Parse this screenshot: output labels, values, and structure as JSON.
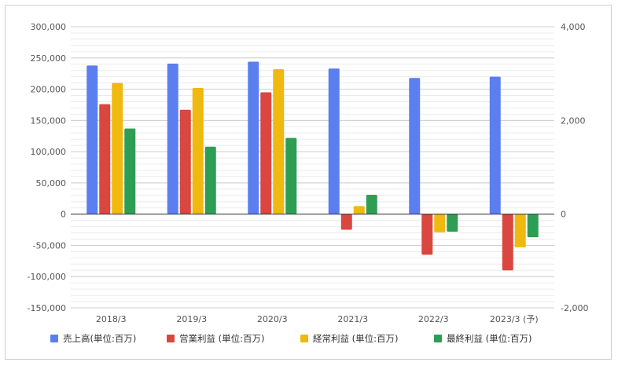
{
  "chart_data": {
    "type": "bar",
    "categories": [
      "2018/3",
      "2019/3",
      "2020/3",
      "2021/3",
      "2022/3",
      "2023/3 (予)"
    ],
    "series": [
      {
        "name": "売上高(単位:百万)",
        "color": "#5b7ff0",
        "axis": "left",
        "values": [
          238000,
          241000,
          244000,
          233000,
          218000,
          220000
        ]
      },
      {
        "name": "営業利益 (単位:百万)",
        "color": "#d9473f",
        "axis": "left",
        "values": [
          176000,
          167000,
          195000,
          -25000,
          -65000,
          -90000
        ]
      },
      {
        "name": "経常利益 (単位:百万)",
        "color": "#f0b90f",
        "axis": "left",
        "values": [
          210000,
          202000,
          232000,
          13000,
          -29000,
          -53000
        ]
      },
      {
        "name": "最終利益 (単位:百万)",
        "color": "#2e9e55",
        "axis": "left",
        "values": [
          137000,
          108000,
          122000,
          31000,
          -28000,
          -37000
        ]
      }
    ],
    "ylim": [
      -150000,
      300000
    ],
    "y_ticks": [
      "300,000",
      "250,000",
      "200,000",
      "150,000",
      "100,000",
      "50,000",
      "0",
      "-50,000",
      "-100,000",
      "-150,000"
    ],
    "y_tick_values": [
      300000,
      250000,
      200000,
      150000,
      100000,
      50000,
      0,
      -50000,
      -100000,
      -150000
    ],
    "y2lim": [
      -2000,
      4000
    ],
    "y2_ticks": [
      "4,000",
      "2,000",
      "0",
      "-2,000"
    ],
    "y2_tick_values": [
      4000,
      2000,
      0,
      -2000
    ],
    "grid": true,
    "legend_position": "bottom",
    "title": "",
    "xlabel": "",
    "ylabel": ""
  }
}
